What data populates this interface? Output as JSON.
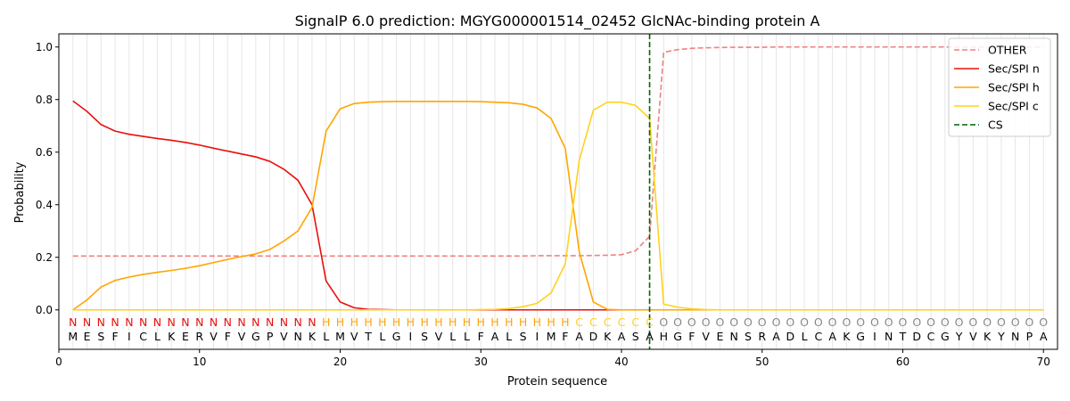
{
  "chart_data": {
    "type": "line",
    "title": "SignalP 6.0 prediction: MGYG000001514_02452 GlcNAc-binding protein A",
    "xlabel": "Protein sequence",
    "ylabel": "Probability",
    "xlim": [
      0,
      71
    ],
    "ylim": [
      -0.15,
      1.05
    ],
    "x_ticks": [
      0,
      10,
      20,
      30,
      40,
      50,
      60,
      70
    ],
    "y_ticks": [
      0.0,
      0.2,
      0.4,
      0.6,
      0.8,
      1.0
    ],
    "y_tick_labels": [
      "0.0",
      "0.2",
      "0.4",
      "0.6",
      "0.8",
      "1.0"
    ],
    "grid": "vertical lines at each residue",
    "legend_position": "top-right",
    "x": [
      1,
      2,
      3,
      4,
      5,
      6,
      7,
      8,
      9,
      10,
      11,
      12,
      13,
      14,
      15,
      16,
      17,
      18,
      19,
      20,
      21,
      22,
      23,
      24,
      25,
      26,
      27,
      28,
      29,
      30,
      31,
      32,
      33,
      34,
      35,
      36,
      37,
      38,
      39,
      40,
      41,
      42,
      43,
      44,
      45,
      46,
      47,
      48,
      49,
      50,
      51,
      52,
      53,
      54,
      55,
      56,
      57,
      58,
      59,
      60,
      61,
      62,
      63,
      64,
      65,
      66,
      67,
      68,
      69,
      70
    ],
    "series": [
      {
        "name": "OTHER",
        "color": "#f08080",
        "dash": "dashed",
        "values": [
          0.205,
          0.205,
          0.205,
          0.205,
          0.205,
          0.205,
          0.205,
          0.205,
          0.205,
          0.205,
          0.205,
          0.205,
          0.205,
          0.205,
          0.205,
          0.205,
          0.205,
          0.205,
          0.205,
          0.205,
          0.205,
          0.205,
          0.205,
          0.205,
          0.205,
          0.205,
          0.205,
          0.205,
          0.205,
          0.205,
          0.205,
          0.205,
          0.205,
          0.206,
          0.206,
          0.206,
          0.206,
          0.207,
          0.208,
          0.21,
          0.225,
          0.28,
          0.98,
          0.99,
          0.995,
          0.997,
          0.998,
          0.999,
          0.999,
          0.999,
          1.0,
          1.0,
          1.0,
          1.0,
          1.0,
          1.0,
          1.0,
          1.0,
          1.0,
          1.0,
          1.0,
          1.0,
          1.0,
          1.0,
          1.0,
          1.0,
          1.0,
          1.0,
          1.0,
          1.0
        ]
      },
      {
        "name": "Sec/SPI n",
        "color": "#e8100c",
        "dash": "solid",
        "values": [
          0.795,
          0.755,
          0.705,
          0.68,
          0.668,
          0.66,
          0.652,
          0.645,
          0.637,
          0.627,
          0.615,
          0.604,
          0.593,
          0.582,
          0.565,
          0.535,
          0.493,
          0.4,
          0.11,
          0.03,
          0.008,
          0.002,
          0.001,
          0,
          0,
          0,
          0,
          0,
          0,
          0,
          0,
          0,
          0,
          0,
          0,
          0,
          0,
          0,
          0,
          0,
          0,
          0,
          0,
          0,
          0,
          0,
          0,
          0,
          0,
          0,
          0,
          0,
          0,
          0,
          0,
          0,
          0,
          0,
          0,
          0,
          0,
          0,
          0,
          0,
          0,
          0,
          0,
          0,
          0,
          0
        ]
      },
      {
        "name": "Sec/SPI h",
        "color": "#ffa500",
        "dash": "solid",
        "values": [
          0.0,
          0.038,
          0.087,
          0.112,
          0.125,
          0.135,
          0.143,
          0.15,
          0.158,
          0.168,
          0.18,
          0.192,
          0.203,
          0.213,
          0.23,
          0.262,
          0.3,
          0.39,
          0.68,
          0.765,
          0.785,
          0.79,
          0.792,
          0.793,
          0.793,
          0.793,
          0.793,
          0.793,
          0.793,
          0.792,
          0.79,
          0.788,
          0.782,
          0.768,
          0.728,
          0.615,
          0.22,
          0.03,
          0.002,
          0,
          0,
          0,
          0,
          0,
          0,
          0,
          0,
          0,
          0,
          0,
          0,
          0,
          0,
          0,
          0,
          0,
          0,
          0,
          0,
          0,
          0,
          0,
          0,
          0,
          0,
          0,
          0,
          0,
          0,
          0
        ]
      },
      {
        "name": "Sec/SPI c",
        "color": "#ffd21e",
        "dash": "solid",
        "values": [
          0,
          0,
          0,
          0,
          0,
          0,
          0,
          0,
          0,
          0,
          0,
          0,
          0,
          0,
          0,
          0,
          0,
          0,
          0,
          0,
          0,
          0,
          0,
          0,
          0,
          0,
          0,
          0,
          0,
          0.001,
          0.002,
          0.005,
          0.012,
          0.025,
          0.065,
          0.175,
          0.57,
          0.76,
          0.79,
          0.79,
          0.778,
          0.728,
          0.022,
          0.01,
          0.004,
          0.001,
          0,
          0,
          0,
          0,
          0,
          0,
          0,
          0,
          0,
          0,
          0,
          0,
          0,
          0,
          0,
          0,
          0,
          0,
          0,
          0,
          0,
          0,
          0,
          0
        ]
      }
    ],
    "cs_line": {
      "name": "CS",
      "x": 42,
      "color": "#006400",
      "dash": "dashed"
    },
    "legend": [
      "OTHER",
      "Sec/SPI n",
      "Sec/SPI h",
      "Sec/SPI c",
      "CS"
    ],
    "label_colors": {
      "N": "#e8100c",
      "H": "#ffa500",
      "C": "#ffd21e",
      "O": "#888888"
    },
    "region_labels": [
      "N",
      "N",
      "N",
      "N",
      "N",
      "N",
      "N",
      "N",
      "N",
      "N",
      "N",
      "N",
      "N",
      "N",
      "N",
      "N",
      "N",
      "N",
      "H",
      "H",
      "H",
      "H",
      "H",
      "H",
      "H",
      "H",
      "H",
      "H",
      "H",
      "H",
      "H",
      "H",
      "H",
      "H",
      "H",
      "H",
      "C",
      "C",
      "C",
      "C",
      "C",
      "C",
      "O",
      "O",
      "O",
      "O",
      "O",
      "O",
      "O",
      "O",
      "O",
      "O",
      "O",
      "O",
      "O",
      "O",
      "O",
      "O",
      "O",
      "O",
      "O",
      "O",
      "O",
      "O",
      "O",
      "O",
      "O",
      "O",
      "O",
      "O"
    ],
    "residues": [
      "M",
      "E",
      "S",
      "F",
      "I",
      "C",
      "L",
      "K",
      "E",
      "R",
      "V",
      "F",
      "V",
      "G",
      "P",
      "V",
      "N",
      "K",
      "L",
      "M",
      "V",
      "T",
      "L",
      "G",
      "I",
      "S",
      "V",
      "L",
      "L",
      "F",
      "A",
      "L",
      "S",
      "I",
      "M",
      "F",
      "A",
      "D",
      "K",
      "A",
      "S",
      "A",
      "H",
      "G",
      "F",
      "V",
      "E",
      "N",
      "S",
      "R",
      "A",
      "D",
      "L",
      "C",
      "A",
      "K",
      "G",
      "I",
      "N",
      "T",
      "D",
      "C",
      "G",
      "Y",
      "V",
      "K",
      "Y",
      "N",
      "P",
      "A"
    ]
  }
}
